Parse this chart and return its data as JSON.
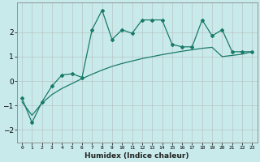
{
  "xlabel": "Humidex (Indice chaleur)",
  "bg_color": "#c8eaea",
  "grid_color": "#b0b0b0",
  "line_color": "#1a7a6a",
  "x_line": [
    0,
    1,
    2,
    3,
    4,
    5,
    6,
    7,
    8,
    9,
    10,
    11,
    12,
    13,
    14,
    15,
    16,
    17,
    18,
    19,
    20,
    21,
    22,
    23
  ],
  "y_jagged": [
    -0.7,
    -1.7,
    -0.85,
    -0.2,
    0.25,
    0.3,
    0.15,
    2.1,
    2.9,
    1.7,
    2.1,
    1.95,
    2.5,
    2.5,
    2.5,
    1.5,
    1.4,
    1.4,
    2.5,
    1.85,
    2.1,
    1.2,
    1.2,
    1.2
  ],
  "y_smooth": [
    -0.85,
    -1.4,
    -0.9,
    -0.55,
    -0.3,
    -0.1,
    0.1,
    0.28,
    0.45,
    0.6,
    0.72,
    0.82,
    0.92,
    1.0,
    1.08,
    1.15,
    1.22,
    1.28,
    1.34,
    1.38,
    1.0,
    1.05,
    1.1,
    1.2
  ],
  "ylim": [
    -2.5,
    3.2
  ],
  "yticks": [
    -2,
    -1,
    0,
    1,
    2
  ],
  "xlim": [
    -0.5,
    23.5
  ]
}
